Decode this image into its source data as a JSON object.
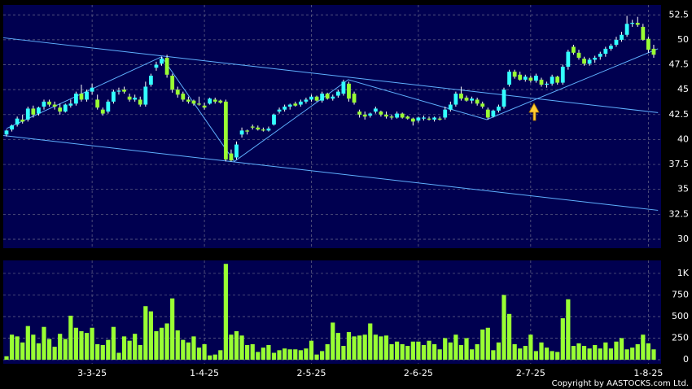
{
  "chart_data": {
    "type": "candlestick",
    "source": "Copyright by AASTOCKS.com Ltd.",
    "up_color": "#33ffff",
    "down_color": "#99ff33",
    "background": "#000050",
    "grid": true,
    "ylim": [
      29.1,
      53.5
    ],
    "yticks": [
      30,
      32.5,
      35,
      37.5,
      40,
      42.5,
      45,
      47.5,
      50,
      52.5
    ],
    "categories": [
      null,
      null,
      null,
      null,
      null,
      null,
      null,
      null,
      null,
      null,
      null,
      null,
      null,
      null,
      null,
      null,
      "3-3-25",
      null,
      null,
      null,
      null,
      null,
      null,
      null,
      null,
      null,
      null,
      null,
      null,
      null,
      null,
      null,
      null,
      null,
      null,
      null,
      null,
      "1-4-25",
      null,
      null,
      null,
      null,
      null,
      null,
      null,
      null,
      null,
      null,
      null,
      null,
      null,
      null,
      null,
      null,
      null,
      null,
      null,
      "2-5-25",
      null,
      null,
      null,
      null,
      null,
      null,
      null,
      null,
      null,
      null,
      null,
      null,
      null,
      null,
      null,
      null,
      null,
      null,
      null,
      "2-6-25",
      null,
      null,
      null,
      null,
      null,
      null,
      null,
      null,
      null,
      null,
      null,
      null,
      null,
      null,
      null,
      null,
      null,
      null,
      null,
      null,
      "2-7-25",
      null,
      null,
      null,
      null,
      null,
      null,
      null,
      null,
      null,
      null,
      null,
      null,
      null,
      null,
      null,
      null,
      null,
      null,
      null,
      null,
      null,
      "1-8-25",
      null
    ],
    "ohlc": [
      [
        40.5,
        41.0,
        40.3,
        40.9
      ],
      [
        41.0,
        41.5,
        40.8,
        41.4
      ],
      [
        41.5,
        42.3,
        41.3,
        42.1
      ],
      [
        42.0,
        42.5,
        41.6,
        41.8
      ],
      [
        42.0,
        43.3,
        41.8,
        43.1
      ],
      [
        43.1,
        43.4,
        42.2,
        42.5
      ],
      [
        42.6,
        43.3,
        42.4,
        43.2
      ],
      [
        43.3,
        44.0,
        43.0,
        43.8
      ],
      [
        43.8,
        44.0,
        43.3,
        43.5
      ],
      [
        43.5,
        43.8,
        43.0,
        43.3
      ],
      [
        43.2,
        43.6,
        42.5,
        42.8
      ],
      [
        42.8,
        43.6,
        42.7,
        43.5
      ],
      [
        43.4,
        44.0,
        43.2,
        43.6
      ],
      [
        43.6,
        44.8,
        43.4,
        44.6
      ],
      [
        44.6,
        45.5,
        43.8,
        44.0
      ],
      [
        44.0,
        45.0,
        43.8,
        44.8
      ],
      [
        44.8,
        45.6,
        44.5,
        45.2
      ],
      [
        44.0,
        44.5,
        43.0,
        43.2
      ],
      [
        43.0,
        43.2,
        42.4,
        42.6
      ],
      [
        42.8,
        44.0,
        42.6,
        43.8
      ],
      [
        43.8,
        45.0,
        43.6,
        44.8
      ],
      [
        44.8,
        45.2,
        44.5,
        44.9
      ],
      [
        45.0,
        45.3,
        44.6,
        44.8
      ],
      [
        44.3,
        44.6,
        43.8,
        44.0
      ],
      [
        44.0,
        44.5,
        43.8,
        44.2
      ],
      [
        44.0,
        44.3,
        43.3,
        43.5
      ],
      [
        43.5,
        45.8,
        43.3,
        45.3
      ],
      [
        45.5,
        46.6,
        45.3,
        46.4
      ],
      [
        47.2,
        47.8,
        46.9,
        47.5
      ],
      [
        47.6,
        48.3,
        47.4,
        48.1
      ],
      [
        48.2,
        48.5,
        46.2,
        46.5
      ],
      [
        46.4,
        46.6,
        44.7,
        45.0
      ],
      [
        45.0,
        45.3,
        44.2,
        44.5
      ],
      [
        44.6,
        44.8,
        43.8,
        44.0
      ],
      [
        44.0,
        44.3,
        43.6,
        43.8
      ],
      [
        43.9,
        44.0,
        43.4,
        43.6
      ],
      [
        43.6,
        44.3,
        43.4,
        43.5
      ],
      [
        43.4,
        43.7,
        43.0,
        43.2
      ],
      [
        43.6,
        44.2,
        43.5,
        44.1
      ],
      [
        44.0,
        44.2,
        43.6,
        43.8
      ],
      [
        43.9,
        44.0,
        43.6,
        43.7
      ],
      [
        43.8,
        44.0,
        37.8,
        38.0
      ],
      [
        38.6,
        39.0,
        37.8,
        37.9
      ],
      [
        38.2,
        39.8,
        38.0,
        39.5
      ],
      [
        40.5,
        41.2,
        40.2,
        40.9
      ],
      [
        40.9,
        41.0,
        40.5,
        40.8
      ],
      [
        41.3,
        41.5,
        41.0,
        41.2
      ],
      [
        41.2,
        41.4,
        40.9,
        41.0
      ],
      [
        41.0,
        41.2,
        40.8,
        40.9
      ],
      [
        40.9,
        41.3,
        40.8,
        41.1
      ],
      [
        41.5,
        42.6,
        41.4,
        42.5
      ],
      [
        42.8,
        43.2,
        42.6,
        43.0
      ],
      [
        43.0,
        43.5,
        42.8,
        43.3
      ],
      [
        43.3,
        43.6,
        43.0,
        43.5
      ],
      [
        43.6,
        43.8,
        43.3,
        43.4
      ],
      [
        43.5,
        44.0,
        43.3,
        43.8
      ],
      [
        43.8,
        44.2,
        43.6,
        44.0
      ],
      [
        44.0,
        44.5,
        43.8,
        44.3
      ],
      [
        44.3,
        44.4,
        43.8,
        43.9
      ],
      [
        43.9,
        44.8,
        43.7,
        44.6
      ],
      [
        44.6,
        44.7,
        44.0,
        44.1
      ],
      [
        44.1,
        44.5,
        43.9,
        44.3
      ],
      [
        44.4,
        45.0,
        44.2,
        44.8
      ],
      [
        44.6,
        46.0,
        44.4,
        45.8
      ],
      [
        45.6,
        45.8,
        43.8,
        44.1
      ],
      [
        44.6,
        44.8,
        43.5,
        43.7
      ],
      [
        42.8,
        43.0,
        42.2,
        42.5
      ],
      [
        42.5,
        42.8,
        42.0,
        42.3
      ],
      [
        42.4,
        42.7,
        42.2,
        42.6
      ],
      [
        42.8,
        43.3,
        42.6,
        43.1
      ],
      [
        42.8,
        42.9,
        42.3,
        42.5
      ],
      [
        42.5,
        42.8,
        42.1,
        42.3
      ],
      [
        42.3,
        42.5,
        42.0,
        42.2
      ],
      [
        42.2,
        42.8,
        42.1,
        42.6
      ],
      [
        42.6,
        42.7,
        42.1,
        42.2
      ],
      [
        42.3,
        42.4,
        42.0,
        42.1
      ],
      [
        42.1,
        42.2,
        41.4,
        41.8
      ],
      [
        41.9,
        42.3,
        41.7,
        42.2
      ],
      [
        42.1,
        42.4,
        41.9,
        42.2
      ],
      [
        42.1,
        42.3,
        41.9,
        42.0
      ],
      [
        42.0,
        42.3,
        41.8,
        42.2
      ],
      [
        42.1,
        42.3,
        41.9,
        42.0
      ],
      [
        42.2,
        43.3,
        42.0,
        43.0
      ],
      [
        43.0,
        43.8,
        42.8,
        43.5
      ],
      [
        43.5,
        44.8,
        43.3,
        44.6
      ],
      [
        44.6,
        45.3,
        43.9,
        44.1
      ],
      [
        44.2,
        44.4,
        43.8,
        43.9
      ],
      [
        43.9,
        44.3,
        43.6,
        44.1
      ],
      [
        44.0,
        44.2,
        43.4,
        43.6
      ],
      [
        43.6,
        43.8,
        43.1,
        43.3
      ],
      [
        43.0,
        43.2,
        42.0,
        42.2
      ],
      [
        42.3,
        43.0,
        42.2,
        42.9
      ],
      [
        42.9,
        43.5,
        42.7,
        43.3
      ],
      [
        43.3,
        45.2,
        43.1,
        45.0
      ],
      [
        45.5,
        47.0,
        45.3,
        46.8
      ],
      [
        46.8,
        47.0,
        46.1,
        46.3
      ],
      [
        46.5,
        46.8,
        45.9,
        46.0
      ],
      [
        46.0,
        46.5,
        45.8,
        46.3
      ],
      [
        46.2,
        46.4,
        45.7,
        45.9
      ],
      [
        45.9,
        46.6,
        45.7,
        46.4
      ],
      [
        46.0,
        46.2,
        45.3,
        45.5
      ],
      [
        45.5,
        45.8,
        45.2,
        45.6
      ],
      [
        45.6,
        46.5,
        45.4,
        46.3
      ],
      [
        46.3,
        46.4,
        45.5,
        45.7
      ],
      [
        45.7,
        47.5,
        45.5,
        47.3
      ],
      [
        47.3,
        49.0,
        47.0,
        48.8
      ],
      [
        49.3,
        49.5,
        48.5,
        48.7
      ],
      [
        48.7,
        49.0,
        48.0,
        48.2
      ],
      [
        48.1,
        48.3,
        47.4,
        47.6
      ],
      [
        47.6,
        48.2,
        47.4,
        48.0
      ],
      [
        48.0,
        48.4,
        47.7,
        48.2
      ],
      [
        48.3,
        48.8,
        48.0,
        48.6
      ],
      [
        48.6,
        49.3,
        48.3,
        49.1
      ],
      [
        49.1,
        49.6,
        48.9,
        49.4
      ],
      [
        49.5,
        50.3,
        49.3,
        50.0
      ],
      [
        50.0,
        50.8,
        49.8,
        50.5
      ],
      [
        50.5,
        52.4,
        50.3,
        51.6
      ],
      [
        51.6,
        52.0,
        51.3,
        51.7
      ],
      [
        51.7,
        52.3,
        51.3,
        51.5
      ],
      [
        51.3,
        51.6,
        49.9,
        50.0
      ],
      [
        50.1,
        50.3,
        48.7,
        49.0
      ],
      [
        49.1,
        49.5,
        48.2,
        48.5
      ]
    ],
    "trendlines": [
      {
        "color": "#5fb0ff",
        "points": [
          [
            -0.6,
            50.2
          ],
          [
            121.8,
            42.7
          ]
        ]
      },
      {
        "color": "#5fb0ff",
        "points": [
          [
            -0.6,
            40.4
          ],
          [
            121.8,
            32.9
          ]
        ]
      },
      {
        "color": "#5fb0ff",
        "points": [
          [
            0,
            41.1
          ],
          [
            29,
            48.3
          ],
          [
            42.6,
            37.8
          ],
          [
            63.9,
            46.0
          ],
          [
            89.8,
            42.0
          ],
          [
            121.8,
            49.1
          ]
        ]
      }
    ],
    "volume": {
      "color": "#99ff33",
      "ylim": [
        -47,
        1150
      ],
      "yticks": [
        0,
        250,
        500,
        750,
        {
          "value": 1000,
          "label": "1K"
        }
      ],
      "values": [
        40,
        290,
        270,
        200,
        390,
        290,
        190,
        380,
        240,
        150,
        300,
        240,
        510,
        370,
        330,
        310,
        370,
        180,
        170,
        230,
        380,
        80,
        270,
        220,
        300,
        170,
        620,
        560,
        330,
        370,
        420,
        710,
        340,
        230,
        200,
        270,
        140,
        180,
        50,
        60,
        110,
        1110,
        290,
        330,
        280,
        170,
        180,
        90,
        140,
        170,
        80,
        110,
        130,
        120,
        120,
        110,
        130,
        220,
        60,
        100,
        180,
        430,
        310,
        160,
        320,
        270,
        280,
        290,
        420,
        290,
        270,
        280,
        180,
        210,
        180,
        160,
        210,
        210,
        170,
        220,
        180,
        120,
        250,
        200,
        290,
        170,
        250,
        120,
        180,
        350,
        370,
        110,
        200,
        750,
        530,
        180,
        130,
        160,
        290,
        100,
        200,
        140,
        100,
        90,
        480,
        700,
        160,
        190,
        160,
        130,
        170,
        130,
        200,
        130,
        210,
        250,
        120,
        140,
        180,
        290,
        190,
        120
      ]
    }
  }
}
